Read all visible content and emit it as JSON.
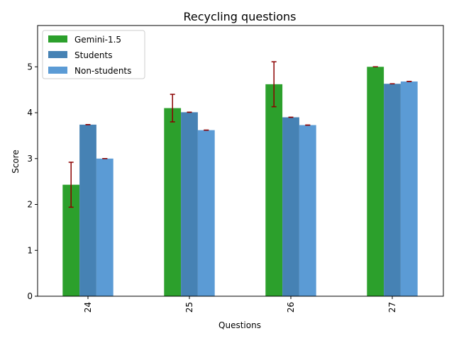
{
  "chart_data": {
    "type": "bar",
    "title": "Recycling questions",
    "xlabel": "Questions",
    "ylabel": "Score",
    "categories": [
      "24",
      "25",
      "26",
      "27"
    ],
    "ylim": [
      0,
      5.9
    ],
    "yticks": [
      0,
      1,
      2,
      3,
      4,
      5
    ],
    "grid": false,
    "legend_position": "top-left",
    "error_bar_color": "#8b0000",
    "series": [
      {
        "name": "Gemini-1.5",
        "color": "#2ca02c",
        "values": [
          2.43,
          4.1,
          4.62,
          5.0
        ],
        "errors": [
          0.49,
          0.3,
          0.49,
          0.0
        ]
      },
      {
        "name": "Students",
        "color": "#4682b4",
        "values": [
          3.74,
          4.01,
          3.9,
          4.63
        ],
        "errors": [
          0,
          0,
          0,
          0
        ]
      },
      {
        "name": "Non-students",
        "color": "#5b9bd5",
        "values": [
          3.0,
          3.62,
          3.73,
          4.68
        ],
        "errors": [
          0,
          0,
          0,
          0
        ]
      }
    ]
  }
}
